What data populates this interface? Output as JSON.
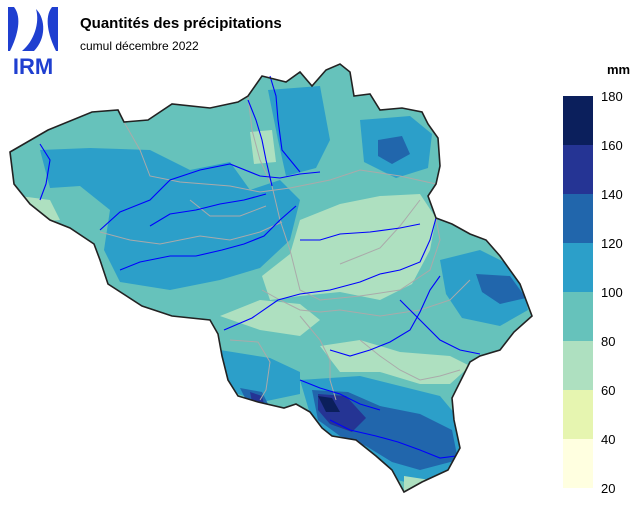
{
  "header": {
    "logo_text": "IRM",
    "title": "Quantités des précipitations",
    "subtitle": "cumul décembre 2022"
  },
  "legend": {
    "unit": "mm",
    "ticks": [
      "180",
      "160",
      "140",
      "120",
      "100",
      "80",
      "60",
      "40",
      "20"
    ],
    "classes": [
      {
        "range": "160-180",
        "color": "#0b1f5c"
      },
      {
        "range": "140-160",
        "color": "#253494"
      },
      {
        "range": "120-140",
        "color": "#2166ac"
      },
      {
        "range": "100-120",
        "color": "#2c9fc9"
      },
      {
        "range": "80-100",
        "color": "#66c2bb"
      },
      {
        "range": "60-80",
        "color": "#aee0c0"
      },
      {
        "range": "40-60",
        "color": "#e6f5b0"
      },
      {
        "range": "20-40",
        "color": "#ffffe0"
      }
    ]
  },
  "colors": {
    "border": "#222222",
    "provinces": "#aaaaaa",
    "rivers": "#0000ff",
    "logo": "#1f3fd0"
  }
}
